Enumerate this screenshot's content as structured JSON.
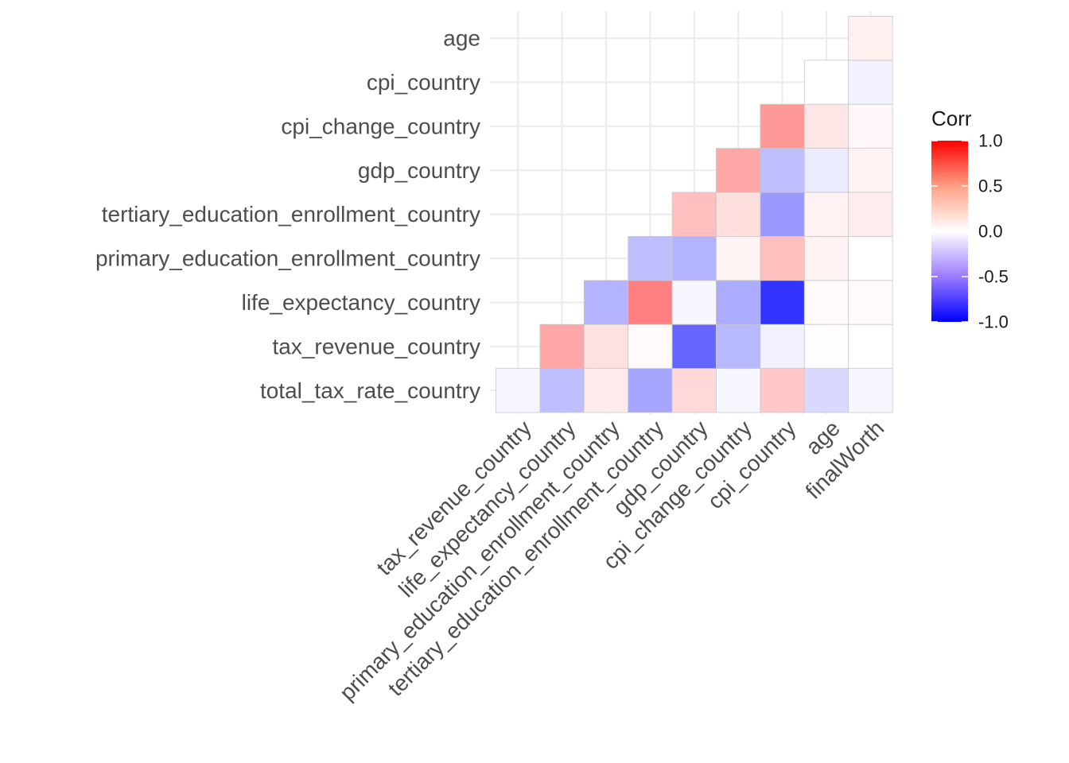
{
  "chart_data": {
    "type": "heatmap",
    "title": "",
    "xlabel": "",
    "ylabel": "",
    "x_categories": [
      "tax_revenue_country",
      "life_expectancy_country",
      "primary_education_enrollment_country",
      "tertiary_education_enrollment_country",
      "gdp_country",
      "cpi_change_country",
      "cpi_country",
      "age",
      "finalWorth"
    ],
    "y_categories": [
      "total_tax_rate_country",
      "tax_revenue_country",
      "life_expectancy_country",
      "primary_education_enrollment_country",
      "tertiary_education_enrollment_country",
      "gdp_country",
      "cpi_change_country",
      "cpi_country",
      "age"
    ],
    "values": [
      [
        -0.04,
        -0.25,
        0.08,
        -0.35,
        0.15,
        -0.03,
        0.22,
        -0.15,
        -0.03
      ],
      [
        null,
        0.35,
        0.12,
        0.02,
        -0.6,
        -0.28,
        -0.05,
        0.01,
        0.0
      ],
      [
        null,
        null,
        -0.3,
        0.5,
        -0.03,
        -0.33,
        -0.8,
        0.02,
        0.02
      ],
      [
        null,
        null,
        null,
        -0.25,
        -0.3,
        0.04,
        0.25,
        0.05,
        0.0
      ],
      [
        null,
        null,
        null,
        null,
        0.25,
        0.13,
        -0.4,
        0.05,
        0.07
      ],
      [
        null,
        null,
        null,
        null,
        null,
        0.35,
        -0.25,
        -0.08,
        0.05
      ],
      [
        null,
        null,
        null,
        null,
        null,
        null,
        0.4,
        0.1,
        0.03
      ],
      [
        null,
        null,
        null,
        null,
        null,
        null,
        null,
        0.0,
        -0.05
      ],
      [
        null,
        null,
        null,
        null,
        null,
        null,
        null,
        null,
        0.06
      ]
    ],
    "color_scale": {
      "low": "#0000ff",
      "mid": "#ffffff",
      "high": "#ff0000",
      "limits": [
        -1.0,
        1.0
      ]
    },
    "legend": {
      "title": "Corr",
      "ticks": [
        "1.0",
        "0.5",
        "0.0",
        "-0.5",
        "-1.0"
      ],
      "tick_values": [
        1.0,
        0.5,
        0.0,
        -0.5,
        -1.0
      ],
      "placement": "right"
    },
    "grid": true
  }
}
